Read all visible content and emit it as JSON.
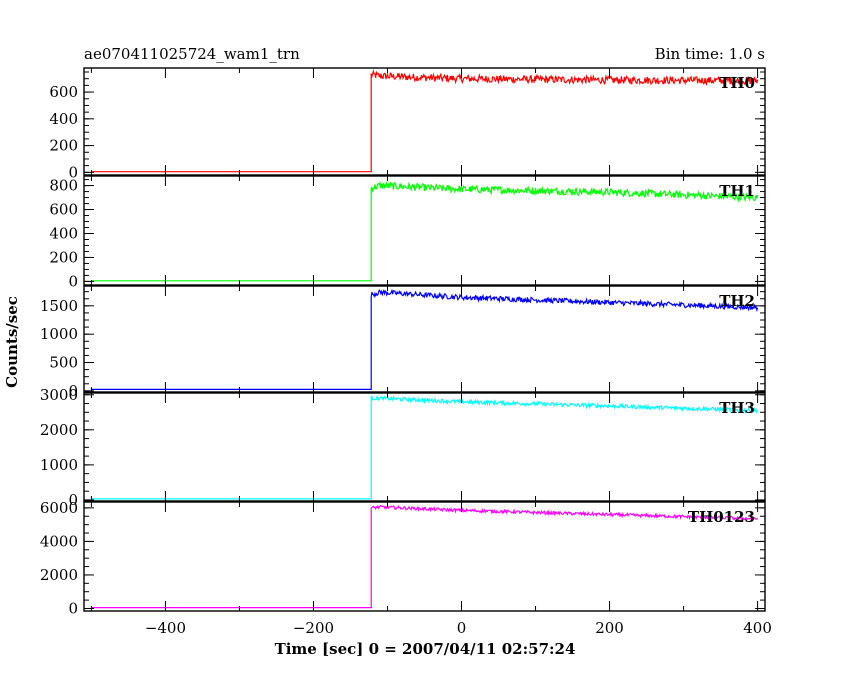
{
  "header": {
    "title": "ae070411025724_wam1_trn",
    "bin_time": "Bin time: 1.0 s"
  },
  "axes": {
    "xlabel": "Time [sec] 0 = 2007/04/11 02:57:24",
    "ylabel": "Counts/sec"
  },
  "chart_data": {
    "type": "line",
    "x_range": [
      -510,
      410
    ],
    "x_ticks": [
      -400,
      -200,
      0,
      200,
      400
    ],
    "x_tick_labels": [
      "−400",
      "−200",
      "0",
      "200",
      "400"
    ],
    "step_time": -122,
    "x_end": 400,
    "grid": false,
    "panels": [
      {
        "name": "TH0",
        "color": "#ff0000",
        "y_range": [
          -20,
          780
        ],
        "y_ticks": [
          0,
          200,
          400,
          600
        ],
        "y_tick_labels": [
          "0",
          "200",
          "400",
          "600"
        ],
        "pre_level": 5,
        "post_trend": [
          [
            -122,
            730
          ],
          [
            -110,
            720
          ],
          [
            0,
            700
          ],
          [
            200,
            690
          ],
          [
            400,
            685
          ]
        ],
        "noise": 28
      },
      {
        "name": "TH1",
        "color": "#00ff00",
        "y_range": [
          -30,
          880
        ],
        "y_ticks": [
          0,
          200,
          400,
          600,
          800
        ],
        "y_tick_labels": [
          "0",
          "200",
          "400",
          "600",
          "800"
        ],
        "pre_level": 5,
        "post_trend": [
          [
            -122,
            780
          ],
          [
            -110,
            800
          ],
          [
            0,
            770
          ],
          [
            200,
            745
          ],
          [
            400,
            700
          ]
        ],
        "noise": 30
      },
      {
        "name": "TH2",
        "color": "#0000ff",
        "y_range": [
          -20,
          1850
        ],
        "y_ticks": [
          0,
          500,
          1000,
          1500
        ],
        "y_tick_labels": [
          "0",
          "500",
          "1000",
          "1500"
        ],
        "pre_level": 25,
        "post_trend": [
          [
            -122,
            1700
          ],
          [
            -110,
            1740
          ],
          [
            0,
            1650
          ],
          [
            200,
            1560
          ],
          [
            400,
            1470
          ]
        ],
        "noise": 45
      },
      {
        "name": "TH3",
        "color": "#00ffff",
        "y_range": [
          -30,
          3050
        ],
        "y_ticks": [
          0,
          1000,
          2000,
          3000
        ],
        "y_tick_labels": [
          "0",
          "1000",
          "2000",
          "3000"
        ],
        "pre_level": 30,
        "post_trend": [
          [
            -122,
            2900
          ],
          [
            -110,
            2900
          ],
          [
            0,
            2800
          ],
          [
            200,
            2680
          ],
          [
            400,
            2550
          ]
        ],
        "noise": 55
      },
      {
        "name": "TH0123",
        "color": "#ff00ff",
        "y_range": [
          -150,
          6350
        ],
        "y_ticks": [
          0,
          2000,
          4000,
          6000
        ],
        "y_tick_labels": [
          "0",
          "2000",
          "4000",
          "6000"
        ],
        "pre_level": 50,
        "post_trend": [
          [
            -122,
            6000
          ],
          [
            -110,
            6050
          ],
          [
            0,
            5850
          ],
          [
            200,
            5600
          ],
          [
            400,
            5350
          ]
        ],
        "noise": 90
      }
    ]
  }
}
